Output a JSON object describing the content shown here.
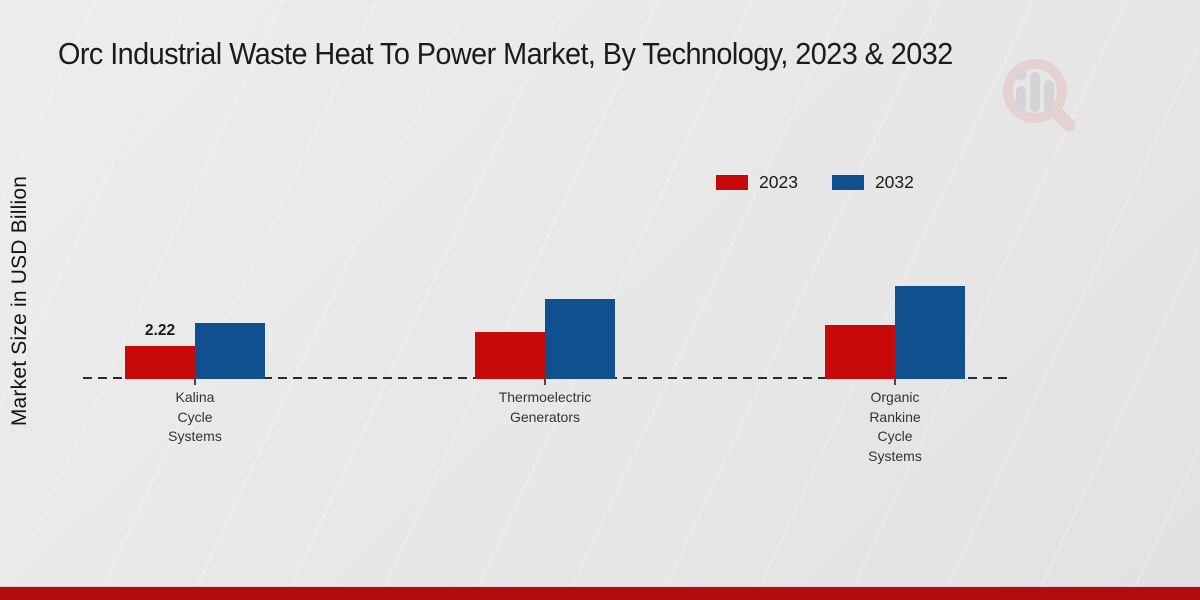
{
  "title": "Orc Industrial Waste Heat To Power Market, By Technology, 2023 & 2032",
  "y_axis_label": "Market Size in USD Billion",
  "legend": [
    {
      "label": "2023",
      "color": "#c80909"
    },
    {
      "label": "2032",
      "color": "#11508f"
    }
  ],
  "colors": {
    "series_2023": "#c80909",
    "series_2032": "#11508f",
    "footer_bar": "#b30c0c",
    "baseline": "#2b2b2b",
    "background": "#e8e8e8",
    "watermark_ring": "#e3c2c2",
    "watermark_bars": "#c6c6ca"
  },
  "footer": {
    "present": true
  },
  "watermark_icon": "magnifier-bar-chart-logo",
  "chart_data": {
    "type": "bar",
    "title": "Orc Industrial Waste Heat To Power Market, By Technology, 2023 & 2032",
    "xlabel": "",
    "ylabel": "Market Size in USD Billion",
    "categories": [
      "Kalina Cycle Systems",
      "Thermoelectric Generators",
      "Organic Rankine Cycle Systems"
    ],
    "category_lines": [
      [
        "Kalina",
        "Cycle",
        "Systems"
      ],
      [
        "Thermoelectric",
        "Generators"
      ],
      [
        "Organic",
        "Rankine",
        "Cycle",
        "Systems"
      ]
    ],
    "series": [
      {
        "name": "2023",
        "color": "#c80909",
        "values": [
          2.22,
          3.16,
          3.63
        ]
      },
      {
        "name": "2032",
        "color": "#11508f",
        "values": [
          3.77,
          5.38,
          6.26
        ]
      }
    ],
    "data_labels": [
      {
        "series_index": 0,
        "category_index": 0,
        "text": "2.22"
      }
    ],
    "ylim": [
      0,
      7
    ],
    "grid": false,
    "legend_position": "upper-right",
    "baseline_style": "dashed"
  }
}
